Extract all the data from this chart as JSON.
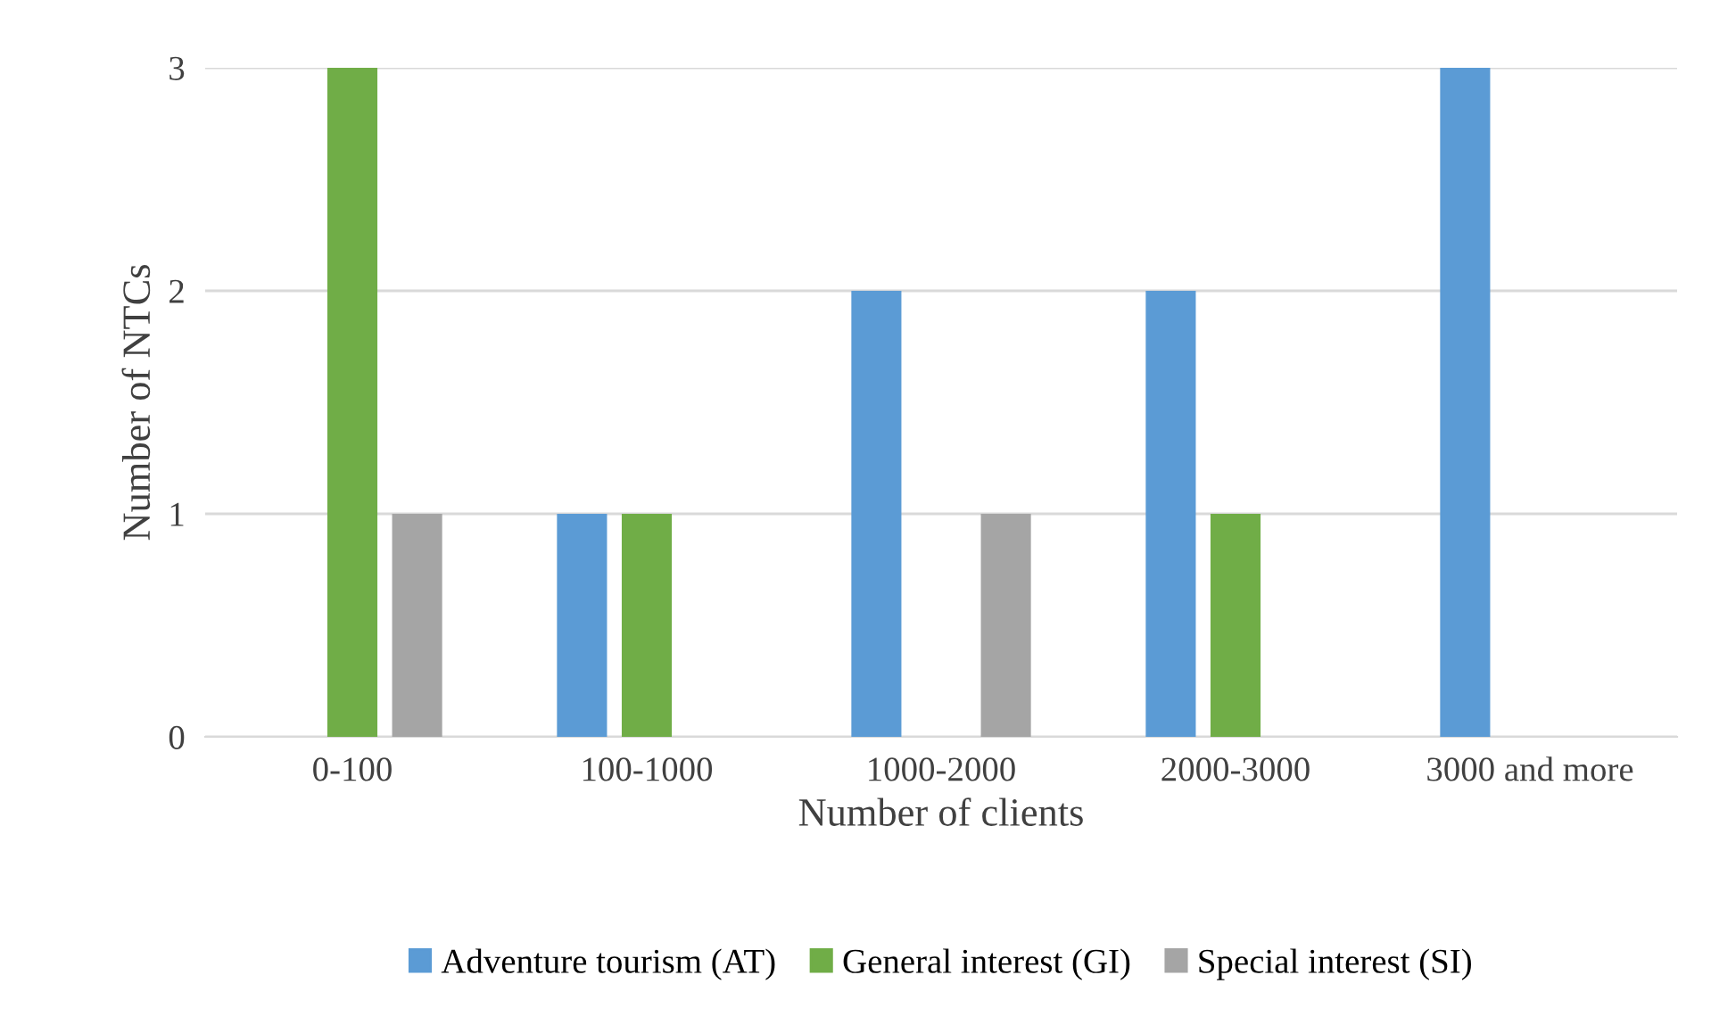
{
  "chart_data": {
    "type": "bar",
    "xlabel": "Number of clients",
    "ylabel": "Number of NTCs",
    "categories": [
      "0-100",
      "100-1000",
      "1000-2000",
      "2000-3000",
      "3000 and more"
    ],
    "series": [
      {
        "name": "Adventure tourism (AT)",
        "color": "#5b9bd5",
        "values": [
          0,
          1,
          2,
          2,
          3
        ]
      },
      {
        "name": "General interest (GI)",
        "color": "#70ad47",
        "values": [
          3,
          1,
          0,
          1,
          0
        ]
      },
      {
        "name": "Special interest (SI)",
        "color": "#a5a5a5",
        "values": [
          1,
          0,
          1,
          0,
          0
        ]
      }
    ],
    "ylim": [
      0,
      3
    ],
    "yticks": [
      0,
      1,
      2,
      3
    ],
    "grid": "y",
    "legend": "bottom"
  }
}
